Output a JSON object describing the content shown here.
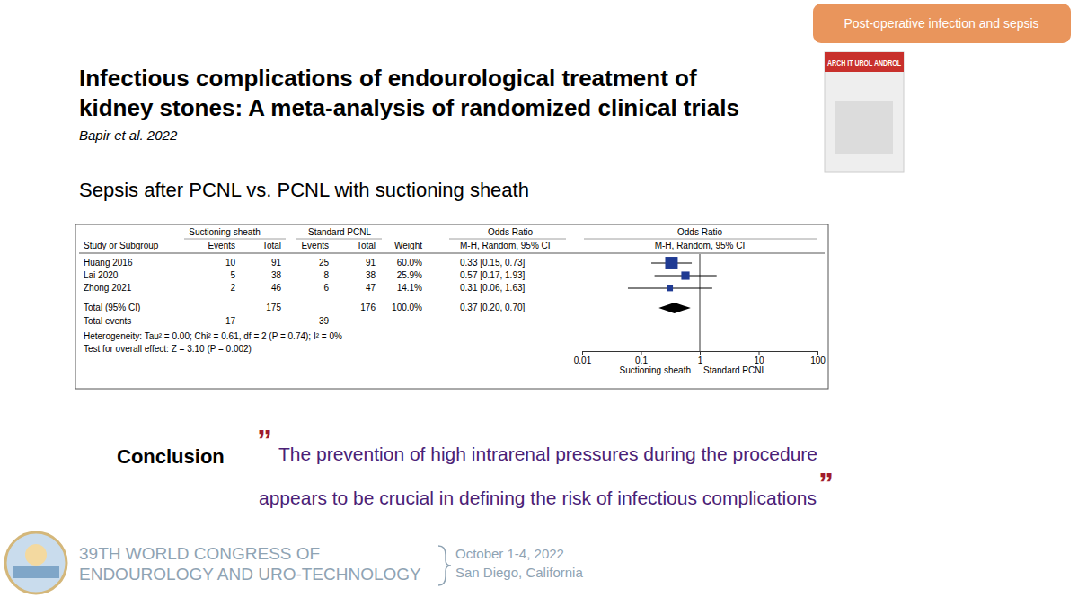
{
  "chart_data": {
    "type": "forest",
    "title": "Sepsis after PCNL vs. PCNL with suctioning sheath",
    "column_groups": [
      "Suctioning sheath",
      "Standard PCNL",
      "Odds Ratio",
      "Odds Ratio"
    ],
    "columns": [
      "Study or Subgroup",
      "Events",
      "Total",
      "Events",
      "Total",
      "Weight",
      "M-H, Random, 95% CI",
      "M-H, Random, 95% CI"
    ],
    "studies": [
      {
        "name": "Huang 2016",
        "events_1": 10,
        "total_1": 91,
        "events_2": 25,
        "total_2": 91,
        "weight": 60.0,
        "weight_label": "60.0%",
        "or": 0.33,
        "ci": [
          0.15,
          0.73
        ],
        "or_label": "0.33 [0.15, 0.73]"
      },
      {
        "name": "Lai 2020",
        "events_1": 5,
        "total_1": 38,
        "events_2": 8,
        "total_2": 38,
        "weight": 25.9,
        "weight_label": "25.9%",
        "or": 0.57,
        "ci": [
          0.17,
          1.93
        ],
        "or_label": "0.57 [0.17, 1.93]"
      },
      {
        "name": "Zhong 2021",
        "events_1": 2,
        "total_1": 46,
        "events_2": 6,
        "total_2": 47,
        "weight": 14.1,
        "weight_label": "14.1%",
        "or": 0.31,
        "ci": [
          0.06,
          1.63
        ],
        "or_label": "0.31 [0.06, 1.63]"
      }
    ],
    "total": {
      "name": "Total (95% CI)",
      "total_1": 175,
      "total_2": 176,
      "weight": 100.0,
      "weight_label": "100.0%",
      "or": 0.37,
      "ci": [
        0.2,
        0.7
      ],
      "or_label": "0.37 [0.20, 0.70]"
    },
    "total_events": {
      "name": "Total events",
      "events_1": 17,
      "events_2": 39
    },
    "heterogeneity": "Heterogeneity: Tau² = 0.00; Chi² = 0.61, df = 2 (P = 0.74); I² = 0%",
    "overall_effect": "Test for overall effect: Z = 3.10 (P = 0.002)",
    "axis_labels": [
      "Suctioning sheath",
      "Standard PCNL"
    ],
    "log": "x",
    "xlim": [
      0.01,
      100
    ],
    "xticks": [
      0.01,
      0.1,
      1,
      10,
      100
    ]
  },
  "slide": {
    "badge": "Post-operative infection and sepsis",
    "title": [
      "Infectious complications of endourological treatment of",
      "kidney stones: A meta-analysis of randomized clinical trials"
    ],
    "citation": "Bapir et al. 2022",
    "journal": "ARCH IT UROL ANDROL",
    "conclusion_label": "Conclusion",
    "open_quote": "”",
    "close_quote": "”",
    "conclusion": [
      "The prevention of high intrarenal pressures during the procedure",
      "appears to be crucial in defining the risk of infectious complications"
    ],
    "congress": [
      "39TH WORLD CONGRESS OF",
      "ENDOUROLOGY AND URO-TECHNOLOGY"
    ],
    "dates": [
      "October 1-4, 2022",
      "San Diego, California"
    ]
  }
}
